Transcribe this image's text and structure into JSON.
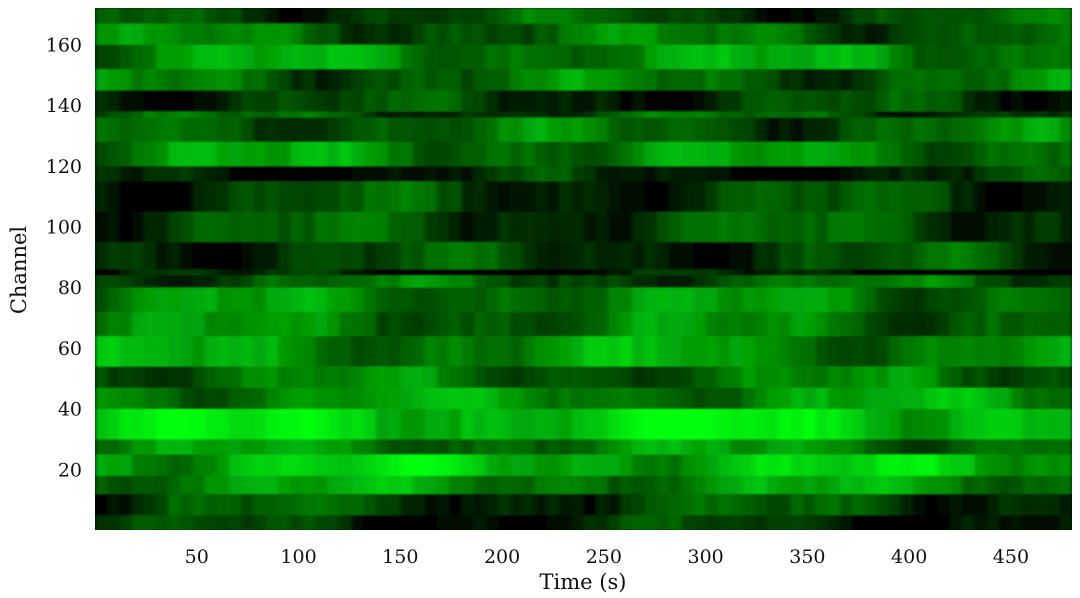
{
  "chart_data": {
    "type": "heatmap",
    "title": "",
    "xlabel": "Time (s)",
    "ylabel": "Channel",
    "xlim": [
      0,
      480
    ],
    "ylim": [
      0,
      172
    ],
    "x_ticks": [
      50,
      100,
      150,
      200,
      250,
      300,
      350,
      400,
      450
    ],
    "y_ticks": [
      20,
      40,
      60,
      80,
      100,
      120,
      140,
      160
    ],
    "colormap": {
      "low": "#000000",
      "high": "#00ff00"
    },
    "grid": false,
    "legend": "none",
    "channel_bands": [
      {
        "from": 0,
        "to": 5,
        "intensity": 0.15
      },
      {
        "from": 5,
        "to": 12,
        "intensity": 0.25
      },
      {
        "from": 12,
        "to": 18,
        "intensity": 0.55
      },
      {
        "from": 18,
        "to": 25,
        "intensity": 0.72
      },
      {
        "from": 25,
        "to": 30,
        "intensity": 0.5
      },
      {
        "from": 30,
        "to": 40,
        "intensity": 0.82
      },
      {
        "from": 40,
        "to": 47,
        "intensity": 0.55
      },
      {
        "from": 47,
        "to": 54,
        "intensity": 0.42
      },
      {
        "from": 54,
        "to": 64,
        "intensity": 0.55
      },
      {
        "from": 64,
        "to": 72,
        "intensity": 0.45
      },
      {
        "from": 72,
        "to": 80,
        "intensity": 0.5
      },
      {
        "from": 80,
        "to": 84,
        "intensity": 0.35
      },
      {
        "from": 84,
        "to": 86,
        "intensity": 0.05
      },
      {
        "from": 86,
        "to": 95,
        "intensity": 0.22
      },
      {
        "from": 95,
        "to": 105,
        "intensity": 0.28
      },
      {
        "from": 105,
        "to": 115,
        "intensity": 0.22
      },
      {
        "from": 115,
        "to": 120,
        "intensity": 0.1
      },
      {
        "from": 120,
        "to": 128,
        "intensity": 0.52
      },
      {
        "from": 128,
        "to": 136,
        "intensity": 0.38
      },
      {
        "from": 136,
        "to": 138,
        "intensity": 0.3
      },
      {
        "from": 138,
        "to": 145,
        "intensity": 0.2
      },
      {
        "from": 145,
        "to": 152,
        "intensity": 0.4
      },
      {
        "from": 152,
        "to": 160,
        "intensity": 0.55
      },
      {
        "from": 160,
        "to": 167,
        "intensity": 0.4
      },
      {
        "from": 167,
        "to": 172,
        "intensity": 0.28
      }
    ]
  }
}
